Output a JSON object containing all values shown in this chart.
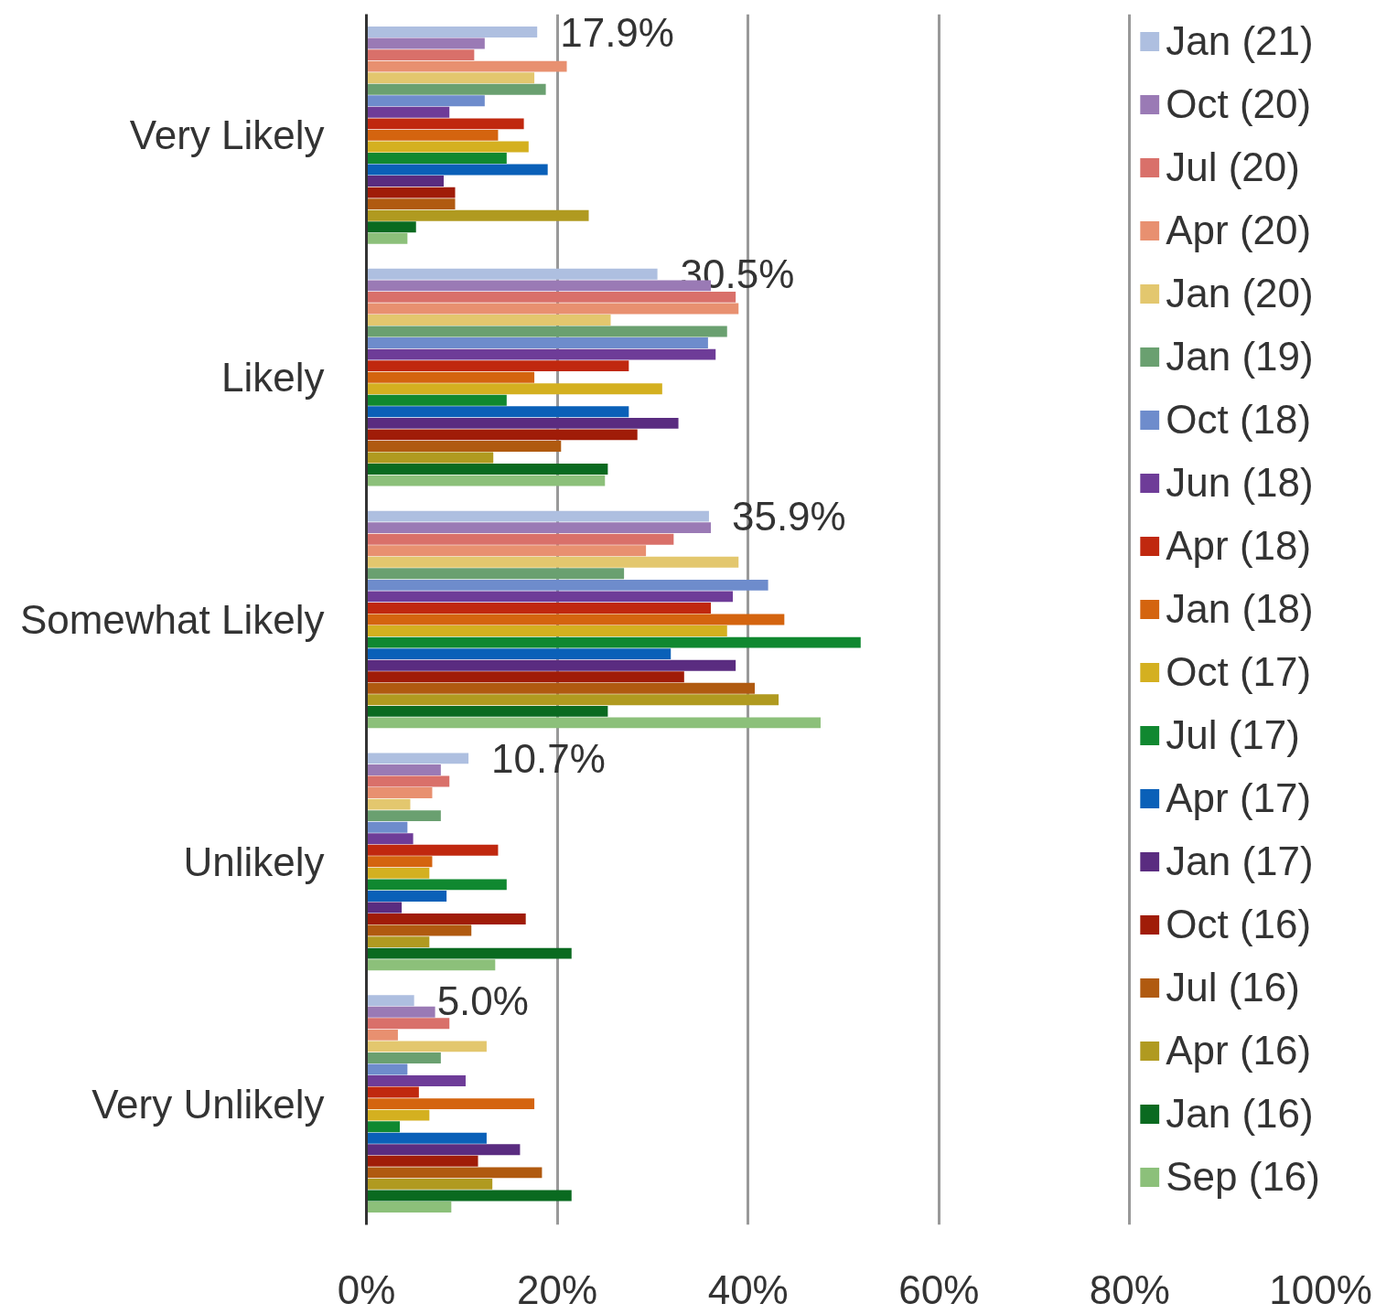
{
  "chart_data": {
    "type": "bar",
    "orientation": "horizontal",
    "categories": [
      "Very Likely",
      "Likely",
      "Somewhat Likely",
      "Unlikely",
      "Very Unlikely"
    ],
    "xlim": [
      0,
      100
    ],
    "xticks": [
      {
        "value": 0,
        "label": "0%"
      },
      {
        "value": 20,
        "label": "20%"
      },
      {
        "value": 40,
        "label": "40%"
      },
      {
        "value": 60,
        "label": "60%"
      },
      {
        "value": 80,
        "label": "80%"
      },
      {
        "value": 100,
        "label": "100%"
      }
    ],
    "grid": "x",
    "legend": "top right",
    "series": [
      {
        "name": "Jan (21)",
        "color": "#aebfe0",
        "values": [
          17.9,
          30.5,
          35.9,
          10.7,
          5.0
        ],
        "value_labels": [
          "17.9%",
          "30.5%",
          "35.9%",
          "10.7%",
          "5.0%"
        ]
      },
      {
        "name": "Oct (20)",
        "color": "#9a7ab5",
        "values": [
          12.4,
          36.1,
          36.1,
          7.8,
          7.2
        ]
      },
      {
        "name": "Jul (20)",
        "color": "#d9706a",
        "values": [
          11.3,
          38.7,
          32.2,
          8.7,
          8.7
        ]
      },
      {
        "name": "Apr (20)",
        "color": "#e89070",
        "values": [
          21.0,
          39.0,
          29.3,
          6.9,
          3.3
        ]
      },
      {
        "name": "Jan (20)",
        "color": "#e3c76e",
        "values": [
          17.6,
          25.6,
          39.0,
          4.6,
          12.6
        ]
      },
      {
        "name": "Jan (19)",
        "color": "#6aa070",
        "values": [
          18.8,
          37.8,
          27.0,
          7.8,
          7.8
        ]
      },
      {
        "name": "Oct (18)",
        "color": "#6e8ccc",
        "values": [
          12.4,
          35.8,
          42.1,
          4.3,
          4.3
        ]
      },
      {
        "name": "Jun (18)",
        "color": "#6e3c98",
        "values": [
          8.7,
          36.6,
          38.4,
          4.9,
          10.4
        ]
      },
      {
        "name": "Apr (18)",
        "color": "#c0280f",
        "values": [
          16.5,
          27.5,
          36.1,
          13.8,
          5.5
        ]
      },
      {
        "name": "Jan (18)",
        "color": "#d4640f",
        "values": [
          13.8,
          17.6,
          43.8,
          6.9,
          17.6
        ]
      },
      {
        "name": "Oct (17)",
        "color": "#d4b020",
        "values": [
          17.0,
          31.0,
          37.8,
          6.6,
          6.6
        ]
      },
      {
        "name": "Jul (17)",
        "color": "#108830",
        "values": [
          14.7,
          14.7,
          51.8,
          14.7,
          3.5
        ]
      },
      {
        "name": "Apr (17)",
        "color": "#0a60b8",
        "values": [
          19.0,
          27.5,
          31.9,
          8.4,
          12.6
        ]
      },
      {
        "name": "Jan (17)",
        "color": "#5a2c80",
        "values": [
          8.1,
          32.7,
          38.7,
          3.7,
          16.1
        ]
      },
      {
        "name": "Oct (16)",
        "color": "#a01c08",
        "values": [
          9.3,
          28.4,
          33.3,
          16.7,
          11.7
        ]
      },
      {
        "name": "Jul (16)",
        "color": "#b05a10",
        "values": [
          9.3,
          20.4,
          40.7,
          11.0,
          18.4
        ]
      },
      {
        "name": "Apr (16)",
        "color": "#b09a20",
        "values": [
          23.3,
          13.3,
          43.2,
          6.6,
          13.2
        ]
      },
      {
        "name": "Jan (16)",
        "color": "#0a6a20",
        "values": [
          5.2,
          25.3,
          25.3,
          21.5,
          21.5
        ]
      },
      {
        "name": "Sep (16)",
        "color": "#8cc07a",
        "values": [
          4.3,
          25.0,
          47.6,
          13.5,
          8.9
        ]
      }
    ]
  }
}
